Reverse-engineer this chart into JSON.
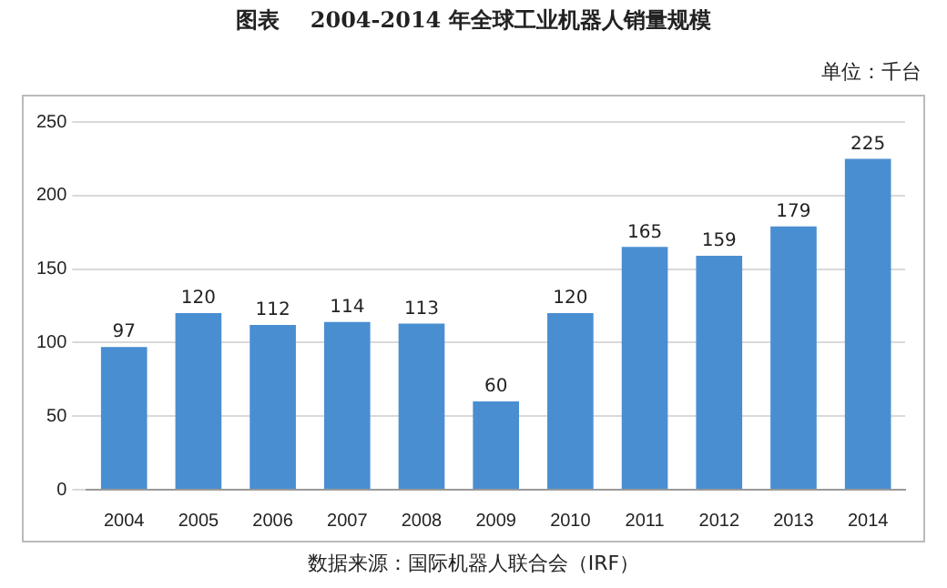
{
  "chart_data": {
    "type": "bar",
    "title": "图表    2004-2014 年全球工业机器人销量规模",
    "annotations": [
      "单位：千台",
      "数据来源：国际机器人联合会（IRF）"
    ],
    "categories": [
      "2004",
      "2005",
      "2006",
      "2007",
      "2008",
      "2009",
      "2010",
      "2011",
      "2012",
      "2013",
      "2014"
    ],
    "values": [
      97,
      120,
      112,
      114,
      113,
      60,
      120,
      165,
      159,
      179,
      225
    ],
    "color": "#4a8ed2",
    "ylim": [
      0,
      250
    ],
    "yticks": [
      0,
      50,
      100,
      150,
      200,
      250
    ],
    "grid": "y",
    "data_labels": true,
    "legend": false
  }
}
